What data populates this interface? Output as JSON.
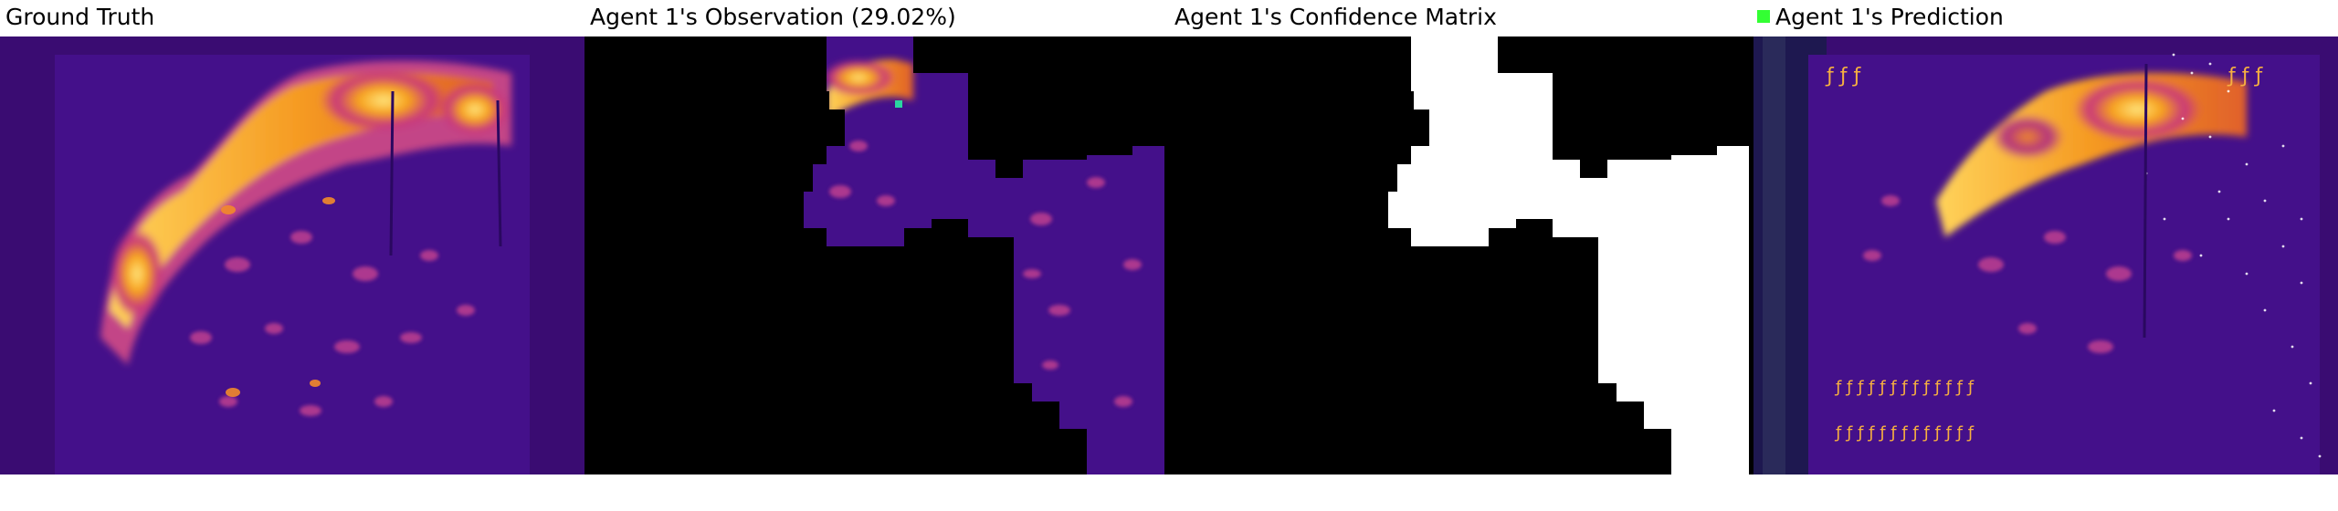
{
  "panels": [
    {
      "title": "Ground Truth"
    },
    {
      "title": "Agent 1's Observation (29.02%)"
    },
    {
      "title": "Agent 1's Confidence Matrix"
    },
    {
      "title": "Agent 1's Prediction",
      "legend_color": "#33ff33"
    }
  ]
}
